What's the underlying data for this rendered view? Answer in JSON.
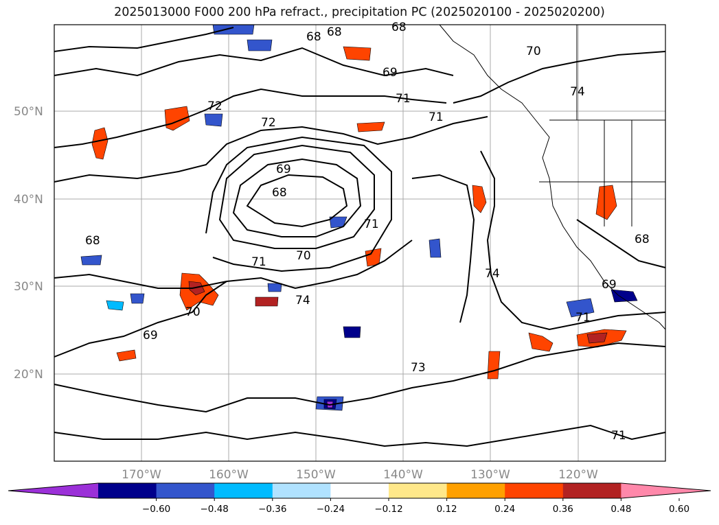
{
  "title": "2025013000 F000 200 hPa refract., precipitation PC (2025020100 - 2025020200)",
  "map": {
    "lon_ticks": [
      "170°W",
      "160°W",
      "150°W",
      "140°W",
      "130°W",
      "120°W"
    ],
    "lat_ticks": [
      "50°N",
      "40°N",
      "30°N",
      "20°N"
    ],
    "contour_labels": [
      "68",
      "68",
      "68",
      "70",
      "69",
      "71",
      "74",
      "72",
      "72",
      "71",
      "69",
      "68",
      "71",
      "70",
      "68",
      "74",
      "70",
      "69",
      "74",
      "73",
      "71",
      "69",
      "68",
      "71",
      "71"
    ],
    "gridline_color": "#aaaaaa"
  },
  "colorbar": {
    "ticks": [
      "−0.60",
      "−0.48",
      "−0.36",
      "−0.24",
      "−0.12",
      "0.12",
      "0.24",
      "0.36",
      "0.48",
      "0.60"
    ],
    "colors": [
      "#9b30d8",
      "#00008b",
      "#3355cc",
      "#00bbff",
      "#b0e2ff",
      "#ffffff",
      "#ffe88a",
      "#ffa000",
      "#ff4400",
      "#b22222",
      "#ff88aa"
    ]
  }
}
